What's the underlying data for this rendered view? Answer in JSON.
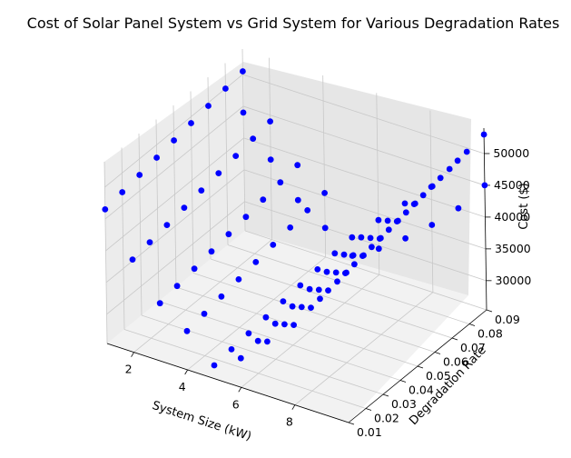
{
  "chart_data": {
    "type": "scatter",
    "projection": "3d",
    "title": "Cost of Solar Panel System vs Grid System for Various Degradation Rates",
    "xlabel": "System Size (kW)",
    "ylabel": "Degradation Rate",
    "zlabel": "Cost ($)",
    "x_ticks": [
      "2",
      "4",
      "6",
      "8"
    ],
    "y_ticks": [
      "0.01",
      "0.02",
      "0.03",
      "0.04",
      "0.05",
      "0.06",
      "0.07",
      "0.08",
      "0.09"
    ],
    "z_ticks": [
      "30000",
      "35000",
      "40000",
      "45000",
      "50000"
    ],
    "xlim": [
      1,
      10
    ],
    "ylim": [
      0.01,
      0.09
    ],
    "zlim": [
      25400,
      54000
    ],
    "marker_color": "#0000ff",
    "grid": true,
    "points": {
      "x": [
        1,
        2,
        3,
        4,
        5,
        6,
        7,
        8,
        9,
        10,
        1,
        2,
        3,
        4,
        5,
        6,
        7,
        8,
        9,
        10,
        1,
        2,
        3,
        4,
        5,
        6,
        7,
        8,
        9,
        10,
        1,
        2,
        3,
        4,
        5,
        6,
        7,
        8,
        9,
        10,
        1,
        2,
        3,
        4,
        5,
        6,
        7,
        8,
        9,
        10,
        1,
        2,
        3,
        4,
        5,
        6,
        7,
        8,
        9,
        10,
        1,
        2,
        3,
        4,
        5,
        6,
        7,
        8,
        9,
        10,
        1,
        2,
        3,
        4,
        5,
        6,
        7,
        8,
        9,
        10,
        1,
        2,
        3,
        4,
        5,
        6,
        7,
        8,
        9,
        10,
        1,
        2,
        3,
        4,
        5,
        6,
        7,
        8,
        9,
        10
      ],
      "y": [
        0.01,
        0.01,
        0.01,
        0.01,
        0.01,
        0.01,
        0.01,
        0.01,
        0.01,
        0.01,
        0.02,
        0.02,
        0.02,
        0.02,
        0.02,
        0.02,
        0.02,
        0.02,
        0.02,
        0.02,
        0.03,
        0.03,
        0.03,
        0.03,
        0.03,
        0.03,
        0.03,
        0.03,
        0.03,
        0.03,
        0.04,
        0.04,
        0.04,
        0.04,
        0.04,
        0.04,
        0.04,
        0.04,
        0.04,
        0.04,
        0.05,
        0.05,
        0.05,
        0.05,
        0.05,
        0.05,
        0.05,
        0.05,
        0.05,
        0.05,
        0.06,
        0.06,
        0.06,
        0.06,
        0.06,
        0.06,
        0.06,
        0.06,
        0.06,
        0.06,
        0.07,
        0.07,
        0.07,
        0.07,
        0.07,
        0.07,
        0.07,
        0.07,
        0.07,
        0.07,
        0.08,
        0.08,
        0.08,
        0.08,
        0.08,
        0.08,
        0.08,
        0.08,
        0.08,
        0.08,
        0.09,
        0.09,
        0.09,
        0.09,
        0.09,
        0.09,
        0.09,
        0.09,
        0.09,
        0.09,
        0.09,
        0.09,
        0.09,
        0.09,
        0.09,
        0.09,
        0.09,
        0.09,
        0.09,
        0.09
      ],
      "z": [
        46500,
        40000,
        34500,
        31500,
        27500,
        30000,
        34000,
        38000,
        43500,
        49000,
        47000,
        40500,
        35000,
        32000,
        27800,
        30500,
        34500,
        38500,
        44000,
        49500,
        47500,
        41000,
        35500,
        32500,
        28100,
        31000,
        35000,
        39000,
        44500,
        50000,
        48000,
        41500,
        36000,
        33000,
        28400,
        31500,
        35500,
        39500,
        45000,
        50500,
        48500,
        42000,
        36500,
        33500,
        28700,
        32000,
        36000,
        40000,
        45500,
        51000,
        49000,
        42500,
        37000,
        34000,
        29000,
        32500,
        36500,
        40500,
        46000,
        51500,
        49500,
        43000,
        37500,
        34500,
        29300,
        33000,
        37000,
        41000,
        46500,
        52000,
        50000,
        43500,
        38000,
        35000,
        29600,
        33500,
        37500,
        41500,
        47000,
        52500,
        50500,
        44000,
        38500,
        35500,
        29900,
        34000,
        38000,
        42000,
        47500,
        53000,
        44000,
        38000,
        33000,
        30000,
        27000,
        29500,
        32500,
        36000,
        40000,
        45000
      ]
    }
  }
}
